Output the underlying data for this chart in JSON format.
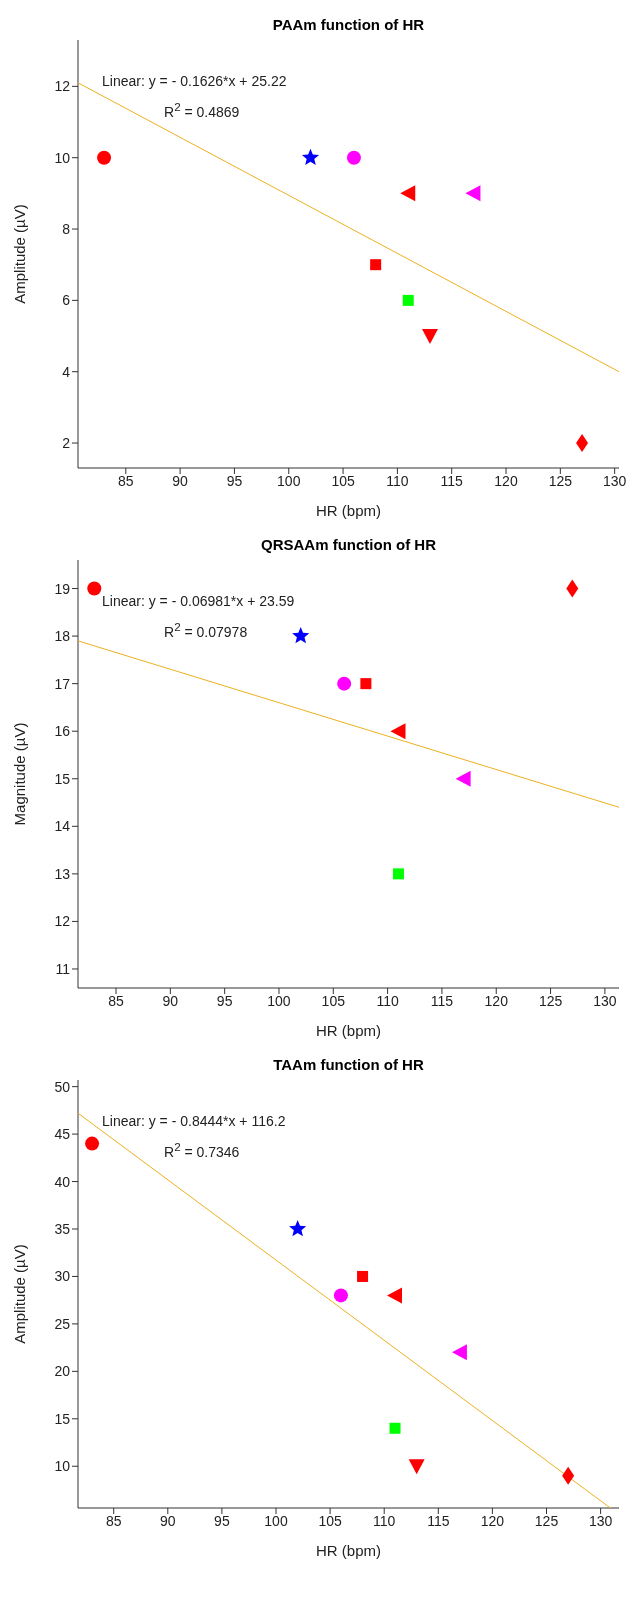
{
  "chart_data": [
    {
      "type": "scatter",
      "title": "PAAm function of HR",
      "xlabel": "HR (bpm)",
      "ylabel": "Amplitude (µV)",
      "xlim": [
        80.6,
        130.4
      ],
      "ylim": [
        1.3,
        13.3
      ],
      "xticks": [
        85,
        90,
        95,
        100,
        105,
        110,
        115,
        120,
        125,
        130
      ],
      "yticks": [
        2,
        4,
        6,
        8,
        10,
        12
      ],
      "grid": false,
      "legend": false,
      "annotations": [
        "Linear:  y = - 0.1626*x + 25.22",
        "R$^{2}$ = 0.4869"
      ],
      "series": [
        {
          "type": "line",
          "color": "#edb120",
          "x": [
            80.6,
            130.4
          ],
          "values": [
            12.1,
            4.0
          ],
          "marker": "none"
        },
        {
          "color": "#ff0000",
          "marker": "circle",
          "x": [
            83
          ],
          "values": [
            10
          ]
        },
        {
          "color": "#0000ff",
          "marker": "star",
          "x": [
            102
          ],
          "values": [
            10
          ]
        },
        {
          "color": "#ff00ff",
          "marker": "circle",
          "x": [
            106
          ],
          "values": [
            10
          ]
        },
        {
          "color": "#ff0000",
          "marker": "triangle-left",
          "x": [
            111
          ],
          "values": [
            9
          ]
        },
        {
          "color": "#ff00ff",
          "marker": "triangle-left",
          "x": [
            117
          ],
          "values": [
            9
          ]
        },
        {
          "color": "#ff0000",
          "marker": "square",
          "x": [
            108
          ],
          "values": [
            7
          ]
        },
        {
          "color": "#00ff00",
          "marker": "square",
          "x": [
            111
          ],
          "values": [
            6
          ]
        },
        {
          "color": "#ff0000",
          "marker": "triangle-down",
          "x": [
            113
          ],
          "values": [
            5
          ]
        },
        {
          "color": "#ff0000",
          "marker": "diamond",
          "x": [
            127
          ],
          "values": [
            2
          ]
        }
      ]
    },
    {
      "type": "scatter",
      "title": "QRSAAm function of HR",
      "xlabel": "HR (bpm)",
      "ylabel": "Magnitude (µV)",
      "xlim": [
        81.5,
        131.3
      ],
      "ylim": [
        10.6,
        19.6
      ],
      "xticks": [
        85,
        90,
        95,
        100,
        105,
        110,
        115,
        120,
        125,
        130
      ],
      "yticks": [
        11,
        12,
        13,
        14,
        15,
        16,
        17,
        18,
        19
      ],
      "grid": false,
      "legend": false,
      "annotations": [
        "Linear:  y = - 0.06981*x + 23.59",
        "R$^{2}$ = 0.07978"
      ],
      "series": [
        {
          "type": "line",
          "color": "#edb120",
          "x": [
            81.5,
            131.3
          ],
          "values": [
            17.9,
            14.4
          ],
          "marker": "none"
        },
        {
          "color": "#ff0000",
          "marker": "circle",
          "x": [
            83
          ],
          "values": [
            19
          ]
        },
        {
          "color": "#0000ff",
          "marker": "star",
          "x": [
            102
          ],
          "values": [
            18
          ]
        },
        {
          "color": "#ff00ff",
          "marker": "circle",
          "x": [
            106
          ],
          "values": [
            17
          ]
        },
        {
          "color": "#ff0000",
          "marker": "triangle-left",
          "x": [
            111
          ],
          "values": [
            16
          ]
        },
        {
          "color": "#ff00ff",
          "marker": "triangle-left",
          "x": [
            117
          ],
          "values": [
            15
          ]
        },
        {
          "color": "#ff0000",
          "marker": "square",
          "x": [
            108
          ],
          "values": [
            17
          ]
        },
        {
          "color": "#00ff00",
          "marker": "square",
          "x": [
            111
          ],
          "values": [
            13
          ]
        },
        {
          "color": "#ff0000",
          "marker": "diamond",
          "x": [
            127
          ],
          "values": [
            19
          ]
        }
      ]
    },
    {
      "type": "scatter",
      "title": "TAAm function of HR",
      "xlabel": "HR (bpm)",
      "ylabel": "Amplitude (µV)",
      "xlim": [
        81.7,
        131.7
      ],
      "ylim": [
        5.6,
        50.7
      ],
      "xticks": [
        85,
        90,
        95,
        100,
        105,
        110,
        115,
        120,
        125,
        130
      ],
      "yticks": [
        10,
        15,
        20,
        25,
        30,
        35,
        40,
        45,
        50
      ],
      "grid": false,
      "legend": false,
      "annotations": [
        "Linear:  y = - 0.8444*x + 116.2",
        "R$^{2}$ = 0.7346"
      ],
      "series": [
        {
          "type": "line",
          "color": "#edb120",
          "x": [
            81.7,
            130.9
          ],
          "values": [
            47.2,
            5.6
          ],
          "marker": "none"
        },
        {
          "color": "#ff0000",
          "marker": "circle",
          "x": [
            83
          ],
          "values": [
            44
          ]
        },
        {
          "color": "#0000ff",
          "marker": "star",
          "x": [
            102
          ],
          "values": [
            35
          ]
        },
        {
          "color": "#ff00ff",
          "marker": "circle",
          "x": [
            106
          ],
          "values": [
            28
          ]
        },
        {
          "color": "#ff0000",
          "marker": "triangle-left",
          "x": [
            111
          ],
          "values": [
            28
          ]
        },
        {
          "color": "#ff00ff",
          "marker": "triangle-left",
          "x": [
            117
          ],
          "values": [
            22
          ]
        },
        {
          "color": "#ff0000",
          "marker": "square",
          "x": [
            108
          ],
          "values": [
            30
          ]
        },
        {
          "color": "#00ff00",
          "marker": "square",
          "x": [
            111
          ],
          "values": [
            14
          ]
        },
        {
          "color": "#ff0000",
          "marker": "triangle-down",
          "x": [
            113
          ],
          "values": [
            10
          ]
        },
        {
          "color": "#ff0000",
          "marker": "diamond",
          "x": [
            127
          ],
          "values": [
            9
          ]
        }
      ]
    }
  ]
}
